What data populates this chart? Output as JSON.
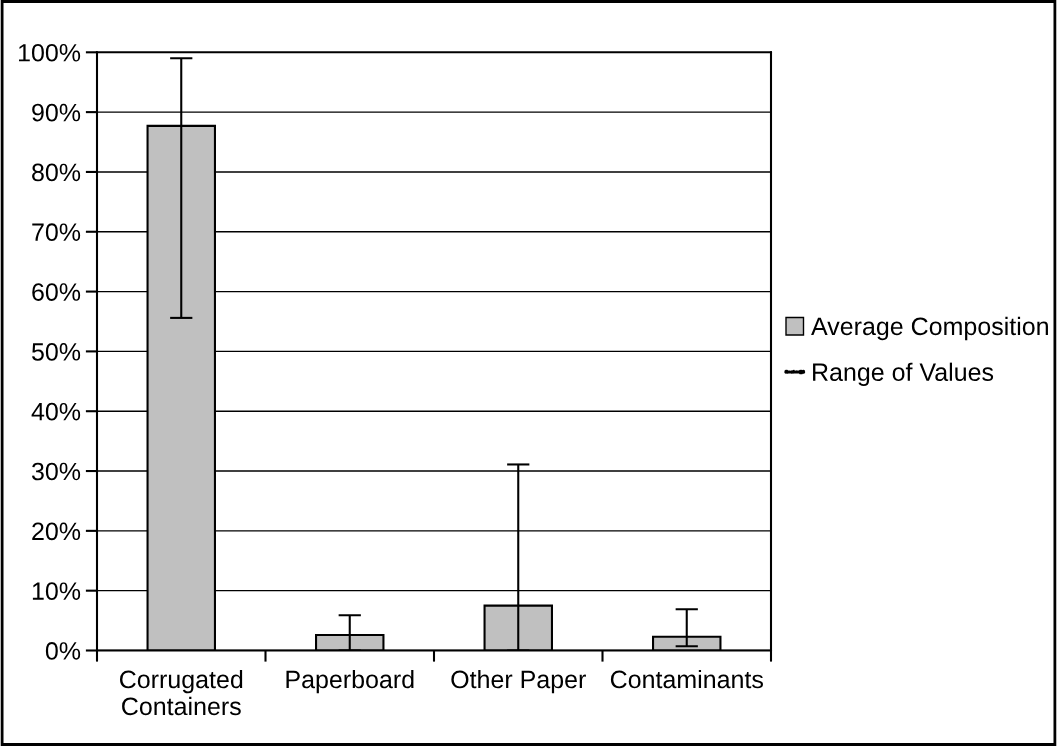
{
  "chart_data": {
    "type": "bar",
    "categories": [
      "Corrugated\nContainers",
      "Paperboard",
      "Other Paper",
      "Contaminants"
    ],
    "series": [
      {
        "name": "Average Composition",
        "color": "#c0c0c0",
        "values": [
          87.7,
          2.6,
          7.5,
          2.3
        ],
        "errors": [
          [
            55.6,
            99.0
          ],
          [
            0,
            5.9
          ],
          [
            0,
            31.1
          ],
          [
            0.7,
            6.9
          ]
        ]
      }
    ],
    "ylim": [
      0,
      100
    ],
    "yticks": [
      {
        "value": 0,
        "label": "0%"
      },
      {
        "value": 10,
        "label": "10%"
      },
      {
        "value": 20,
        "label": "20%"
      },
      {
        "value": 30,
        "label": "30%"
      },
      {
        "value": 40,
        "label": "40%"
      },
      {
        "value": 50,
        "label": "50%"
      },
      {
        "value": 60,
        "label": "60%"
      },
      {
        "value": 70,
        "label": "70%"
      },
      {
        "value": 80,
        "label": "80%"
      },
      {
        "value": 90,
        "label": "90%"
      },
      {
        "value": 100,
        "label": "100%"
      }
    ],
    "grid": "y",
    "legend": "right",
    "annotations": [
      "Range of Values"
    ]
  }
}
